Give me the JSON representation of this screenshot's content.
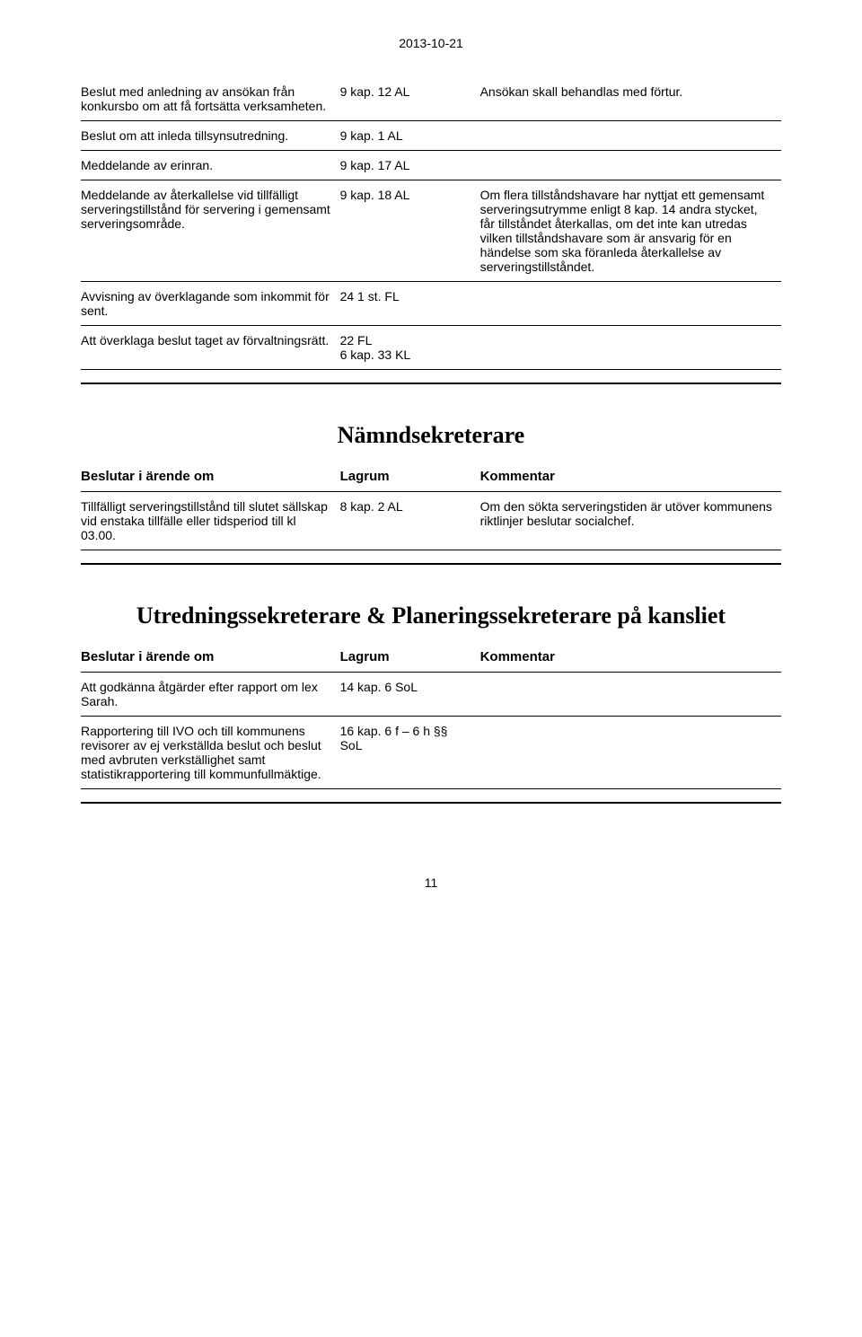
{
  "date_header": "2013-10-21",
  "page_number": "11",
  "table1": {
    "rows": [
      {
        "arende": "Beslut med anledning av ansökan från konkursbo om att få fortsätta verksamheten.",
        "lagrum": "9 kap. 12 AL",
        "kommentar": "Ansökan skall behandlas med förtur."
      },
      {
        "arende": "Beslut om att inleda tillsynsutredning.",
        "lagrum": "9 kap. 1 AL",
        "kommentar": ""
      },
      {
        "arende": "Meddelande av erinran.",
        "lagrum": "9 kap. 17 AL",
        "kommentar": ""
      },
      {
        "arende": "Meddelande av återkallelse vid tillfälligt serveringstillstånd för servering i gemensamt serveringsområde.",
        "lagrum": "9 kap. 18 AL",
        "kommentar": "Om flera tillståndshavare har nyttjat ett gemensamt serveringsutrymme enligt 8 kap. 14 andra stycket, får tillståndet återkallas, om det inte kan utredas vilken tillståndshavare som är ansvarig för en händelse som ska föranleda återkallelse av serveringstillståndet."
      },
      {
        "arende": "Avvisning av överklagande som inkommit för sent.",
        "lagrum": "24 1 st. FL",
        "kommentar": ""
      },
      {
        "arende": "Att överklaga beslut taget av förvaltningsrätt.",
        "lagrum": "22 FL\n6 kap. 33 KL",
        "kommentar": ""
      }
    ]
  },
  "section2": {
    "heading": "Nämndsekreterare",
    "col_arende": "Beslutar i ärende om",
    "col_lagrum": "Lagrum",
    "col_kommentar": "Kommentar",
    "rows": [
      {
        "arende": "Tillfälligt serveringstillstånd till slutet sällskap vid enstaka tillfälle eller tidsperiod till kl 03.00.",
        "lagrum": "8 kap. 2 AL",
        "kommentar": "Om den sökta serveringstiden är utöver kommunens riktlinjer beslutar socialchef."
      }
    ]
  },
  "section3": {
    "heading": "Utredningssekreterare & Planeringssekreterare på kansliet",
    "col_arende": "Beslutar i ärende om",
    "col_lagrum": "Lagrum",
    "col_kommentar": "Kommentar",
    "rows": [
      {
        "arende": "Att godkänna åtgärder efter rapport om lex Sarah.",
        "lagrum": "14 kap. 6 SoL",
        "kommentar": ""
      },
      {
        "arende": "Rapportering till IVO och till kommunens revisorer av ej verkställda beslut och beslut med avbruten verkställighet samt statistikrapportering till kommunfullmäktige.",
        "lagrum": "16 kap. 6 f – 6 h §§ SoL",
        "kommentar": ""
      }
    ]
  }
}
